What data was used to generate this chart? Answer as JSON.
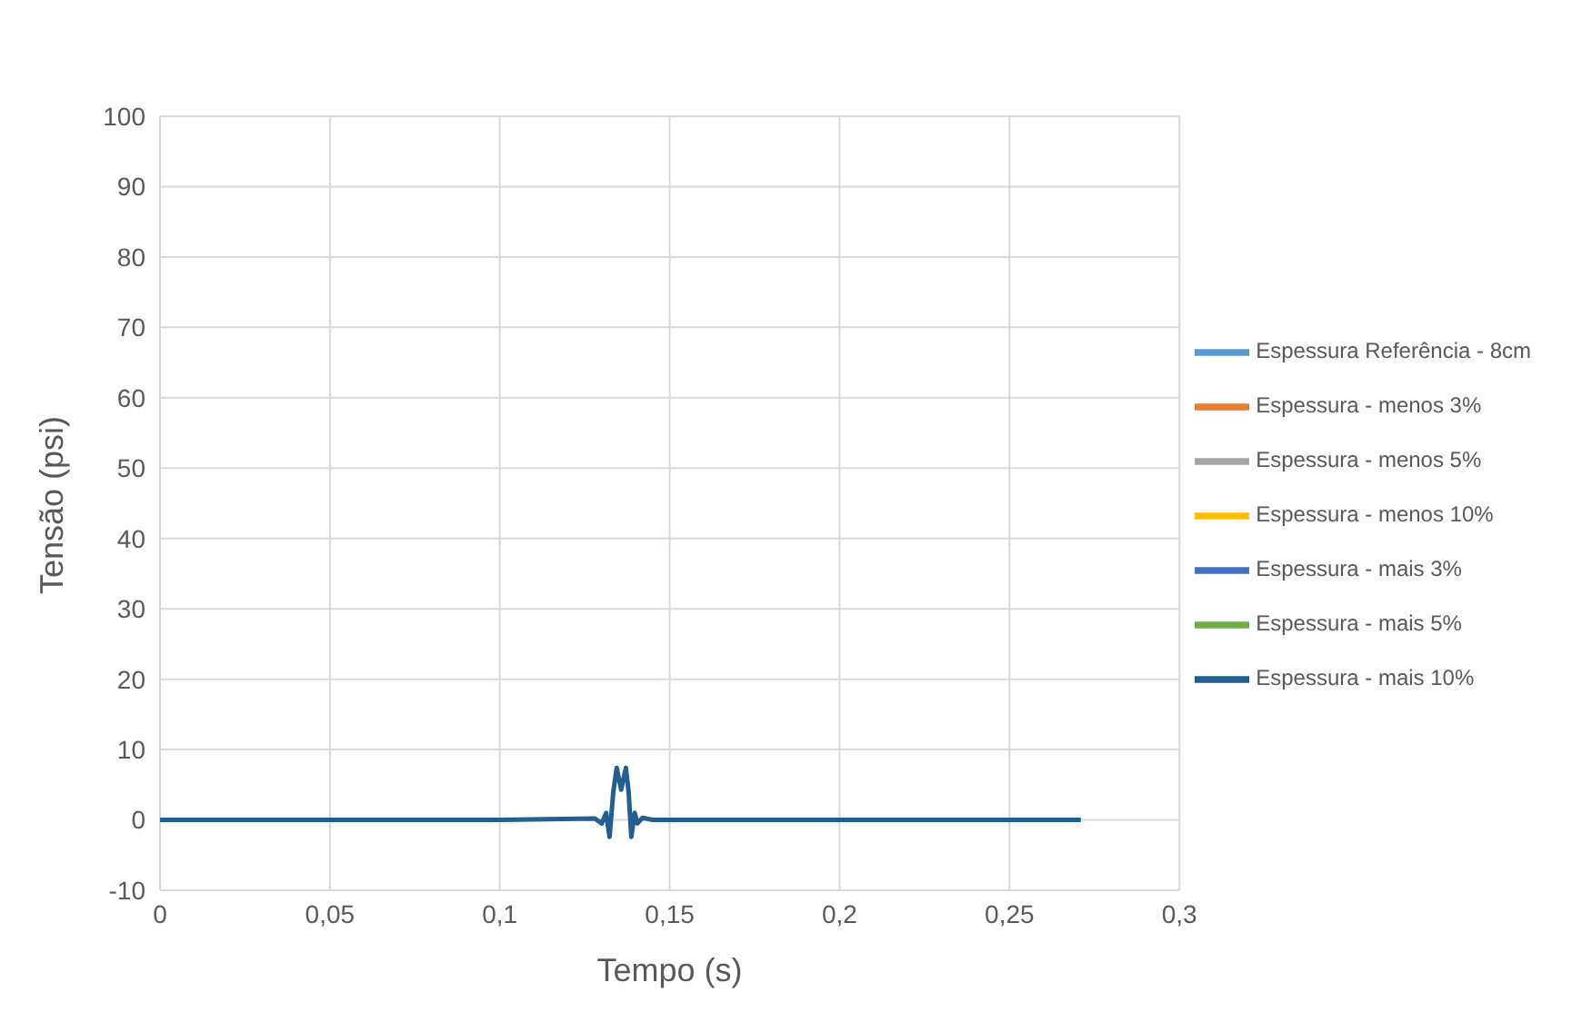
{
  "chart_data": {
    "type": "line",
    "xlabel": "Tempo (s)",
    "ylabel": "Tensão (psi)",
    "x": [
      0,
      0.1,
      0.128,
      0.13,
      0.1313,
      0.1323,
      0.1334,
      0.1344,
      0.1357,
      0.1371,
      0.1379,
      0.1387,
      0.1397,
      0.1405,
      0.142,
      0.145,
      0.271
    ],
    "series": [
      {
        "name": "Espessura Referência - 8cm",
        "color": "#5b9bd5",
        "values": [
          null,
          null,
          null,
          null,
          null,
          null,
          null,
          null,
          null,
          null,
          null,
          null,
          null,
          null,
          null,
          null,
          null
        ]
      },
      {
        "name": "Espessura - menos 3%",
        "color": "#ed7d31",
        "values": [
          null,
          null,
          null,
          null,
          null,
          null,
          null,
          null,
          null,
          null,
          null,
          null,
          null,
          null,
          null,
          null,
          null
        ]
      },
      {
        "name": "Espessura - menos 5%",
        "color": "#a5a5a5",
        "values": [
          null,
          null,
          null,
          null,
          null,
          null,
          null,
          null,
          null,
          null,
          null,
          null,
          null,
          null,
          null,
          null,
          null
        ]
      },
      {
        "name": "Espessura - menos 10%",
        "color": "#ffc000",
        "values": [
          null,
          null,
          null,
          null,
          null,
          null,
          null,
          null,
          null,
          null,
          null,
          null,
          null,
          null,
          null,
          null,
          null
        ]
      },
      {
        "name": "Espessura - mais 3%",
        "color": "#4472c4",
        "values": [
          null,
          null,
          null,
          null,
          null,
          null,
          null,
          null,
          null,
          null,
          null,
          null,
          null,
          null,
          null,
          null,
          null
        ]
      },
      {
        "name": "Espessura - mais 5%",
        "color": "#70ad47",
        "values": [
          null,
          null,
          null,
          null,
          null,
          null,
          null,
          null,
          null,
          null,
          null,
          null,
          null,
          null,
          null,
          null,
          null
        ]
      },
      {
        "name": "Espessura - mais 10%",
        "color": "#255e91",
        "values": [
          0,
          0,
          0.2,
          -0.5,
          1,
          -2.4,
          4,
          7.4,
          4.3,
          7.4,
          4,
          -2.4,
          1,
          -0.5,
          0.3,
          0,
          0
        ]
      }
    ],
    "xlim": [
      0,
      0.3
    ],
    "xticks": [
      0,
      {
        "value": 0.05,
        "label": "0,05"
      },
      {
        "value": 0.1,
        "label": "0,1"
      },
      {
        "value": 0.15,
        "label": "0,15"
      },
      {
        "value": 0.2,
        "label": "0,2"
      },
      {
        "value": 0.25,
        "label": "0,25"
      },
      {
        "value": 0.3,
        "label": "0,3"
      }
    ],
    "ylim": [
      -10,
      100
    ],
    "yticks": [
      -10,
      0,
      10,
      20,
      30,
      40,
      50,
      60,
      70,
      80,
      90,
      100
    ],
    "grid": true,
    "legend": "right",
    "marker": "none",
    "line_style": "solid"
  }
}
